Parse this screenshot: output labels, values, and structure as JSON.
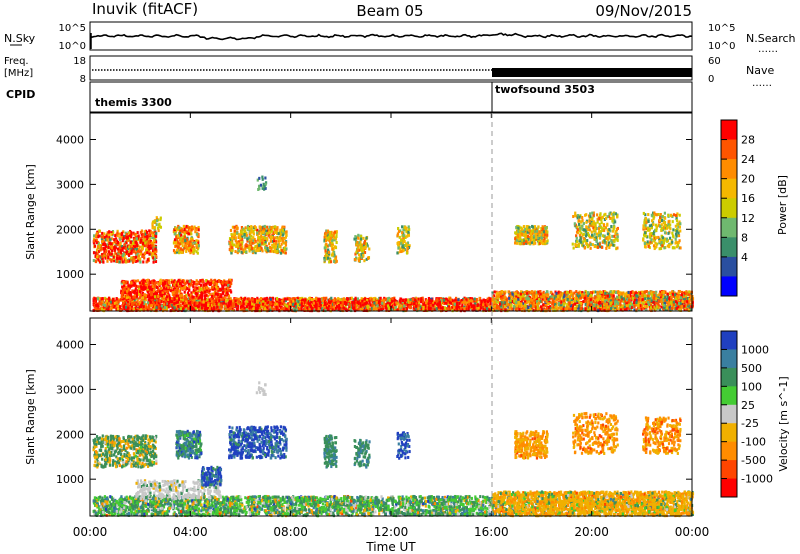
{
  "header": {
    "station": "Inuvik (fitACF)",
    "beam": "Beam 05",
    "date": "09/Nov/2015"
  },
  "noise_panel": {
    "left_label": "N.Sky",
    "left_ticks": [
      "10^5",
      "10^0"
    ],
    "right_label": "N.Search",
    "right_ticks": [
      "10^5",
      "10^0"
    ]
  },
  "freq_panel": {
    "left_label_line1": "Freq.",
    "left_label_line2": "[MHz]",
    "left_ticks": [
      "18",
      "8"
    ],
    "right_label": "Nave",
    "right_ticks": [
      "60",
      "0"
    ]
  },
  "cpid": {
    "label": "CPID",
    "segments": [
      {
        "name": "themis 3300",
        "start_hour": 0
      },
      {
        "name": "twofsound 3503",
        "start_hour": 16
      }
    ]
  },
  "time_axis": {
    "label": "Time UT",
    "ticks": [
      "00:00",
      "04:00",
      "08:00",
      "12:00",
      "16:00",
      "20:00",
      "00:00"
    ],
    "range_hours": [
      0,
      24
    ]
  },
  "chart_data": [
    {
      "type": "heatmap",
      "parameter": "Power",
      "ylabel": "Slant Range [km]",
      "ylim": [
        180,
        4590
      ],
      "yticks": [
        "1000",
        "2000",
        "3000",
        "4000"
      ],
      "colorbar_label": "Power [dB]",
      "colorbar_ticks": [
        "28",
        "24",
        "20",
        "16",
        "12",
        "8",
        "4"
      ],
      "colorbar_colors": [
        "#ff0000",
        "#ff5500",
        "#ff8c00",
        "#f5b800",
        "#cccc00",
        "#6fb86f",
        "#3a8f6a",
        "#2a4fa0",
        "#0000ff"
      ]
    },
    {
      "type": "heatmap",
      "parameter": "Velocity",
      "ylabel": "Slant Range [km]",
      "ylim": [
        180,
        4590
      ],
      "yticks": [
        "1000",
        "2000",
        "3000",
        "4000"
      ],
      "colorbar_label": "Velocity [m s^-1]",
      "colorbar_ticks": [
        "1000",
        "500",
        "100",
        "25",
        "-25",
        "-100",
        "-500",
        "-1000"
      ],
      "colorbar_colors": [
        "#2040c0",
        "#3a7fa0",
        "#3a8f5a",
        "#44cc33",
        "#c8c8c8",
        "#f0b000",
        "#ff8c00",
        "#ff4500",
        "#ff0000"
      ]
    }
  ]
}
